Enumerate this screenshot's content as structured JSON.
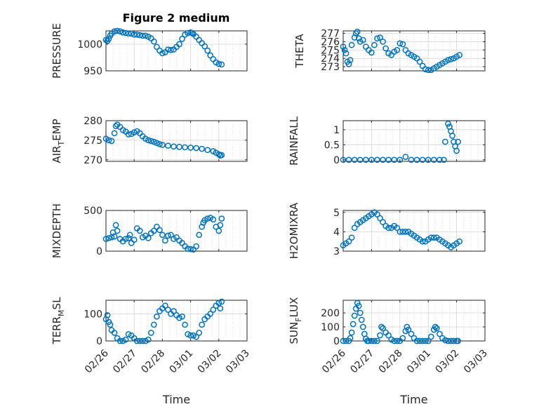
{
  "title": "Figure 2 medium",
  "colors": {
    "marker": "#0072bd",
    "axis": "#262626",
    "grid": "#dcdcdc",
    "background": "#ffffff"
  },
  "x_axis_label": "Time",
  "date_ticks": [
    "02/26",
    "02/27",
    "02/28",
    "03/01",
    "03/02",
    "03/03"
  ],
  "chart_data": [
    {
      "type": "scatter",
      "id": "pressure",
      "ylabel": "PRESSURE",
      "xlim": [
        0,
        5
      ],
      "ylim": [
        950,
        1025
      ],
      "yticks": [
        950,
        1000
      ],
      "ytick_labels": [
        "950",
        "1000"
      ],
      "x": [
        0.0,
        0.05,
        0.1,
        0.15,
        0.2,
        0.3,
        0.4,
        0.5,
        0.6,
        0.7,
        0.8,
        0.9,
        1.0,
        1.1,
        1.2,
        1.3,
        1.4,
        1.5,
        1.6,
        1.7,
        1.8,
        1.9,
        2.0,
        2.1,
        2.2,
        2.3,
        2.4,
        2.5,
        2.6,
        2.7,
        2.8,
        2.9,
        3.0,
        3.05,
        3.1,
        3.2,
        3.3,
        3.4,
        3.5,
        3.6,
        3.7,
        3.8,
        3.9,
        4.0,
        4.1
      ],
      "y": [
        1008,
        1006,
        1010,
        1016,
        1020,
        1024,
        1025,
        1024,
        1022,
        1021,
        1020,
        1020,
        1018,
        1018,
        1017,
        1016,
        1016,
        1014,
        1011,
        1005,
        995,
        988,
        983,
        985,
        990,
        989,
        990,
        995,
        1000,
        1010,
        1018,
        1021,
        1022,
        1021,
        1019,
        1014,
        1008,
        1002,
        996,
        988,
        979,
        972,
        966,
        963,
        962
      ]
    },
    {
      "type": "scatter",
      "id": "theta",
      "ylabel": "THETA",
      "xlim": [
        0,
        5
      ],
      "ylim": [
        272.5,
        277.3
      ],
      "yticks": [
        273,
        274,
        275,
        276,
        277
      ],
      "ytick_labels": [
        "273",
        "274",
        "275",
        "276",
        "277"
      ],
      "x": [
        0.0,
        0.05,
        0.1,
        0.15,
        0.2,
        0.25,
        0.3,
        0.4,
        0.45,
        0.5,
        0.55,
        0.6,
        0.7,
        0.8,
        0.9,
        1.0,
        1.1,
        1.2,
        1.3,
        1.4,
        1.5,
        1.6,
        1.7,
        1.8,
        1.9,
        2.0,
        2.1,
        2.2,
        2.3,
        2.4,
        2.5,
        2.6,
        2.7,
        2.8,
        2.9,
        3.0,
        3.1,
        3.2,
        3.3,
        3.4,
        3.5,
        3.6,
        3.7,
        3.8,
        3.9,
        4.0,
        4.1
      ],
      "y": [
        275.4,
        275.0,
        274.6,
        273.6,
        273.3,
        273.8,
        275.6,
        276.5,
        277.0,
        277.2,
        276.4,
        276.0,
        276.2,
        275.4,
        275.0,
        274.7,
        275.6,
        276.4,
        276.5,
        276.0,
        275.2,
        274.6,
        274.4,
        274.8,
        275.0,
        275.8,
        275.7,
        275.0,
        274.6,
        274.4,
        274.2,
        274.0,
        273.6,
        273.1,
        272.7,
        272.6,
        272.6,
        272.8,
        273.0,
        273.2,
        273.4,
        273.6,
        273.8,
        273.9,
        274.0,
        274.2,
        274.4
      ]
    },
    {
      "type": "scatter",
      "id": "air_temp",
      "ylabel": "AIR",
      "ylabel_sub": "T",
      "ylabel_suffix": "EMP",
      "xlim": [
        0,
        5
      ],
      "ylim": [
        269.6,
        280.0
      ],
      "yticks": [
        270,
        275,
        280
      ],
      "ytick_labels": [
        "270",
        "275",
        "280"
      ],
      "x": [
        0.0,
        0.1,
        0.2,
        0.3,
        0.35,
        0.4,
        0.5,
        0.6,
        0.7,
        0.8,
        0.9,
        1.0,
        1.1,
        1.2,
        1.3,
        1.4,
        1.5,
        1.6,
        1.7,
        1.8,
        1.9,
        2.0,
        2.2,
        2.4,
        2.6,
        2.8,
        3.0,
        3.2,
        3.4,
        3.6,
        3.8,
        3.9,
        4.0,
        4.05,
        4.1
      ],
      "y": [
        275.4,
        275.0,
        274.8,
        276.8,
        278.6,
        279.0,
        278.4,
        277.6,
        277.2,
        276.5,
        276.6,
        277.0,
        277.3,
        276.8,
        276.0,
        275.4,
        275.0,
        274.8,
        274.6,
        274.3,
        274.0,
        273.8,
        273.6,
        273.4,
        273.3,
        273.2,
        273.1,
        273.0,
        272.8,
        272.5,
        272.2,
        271.8,
        271.4,
        271.1,
        271.2
      ]
    },
    {
      "type": "scatter",
      "id": "rainfall",
      "ylabel": "RAINFALL",
      "xlim": [
        0,
        5
      ],
      "ylim": [
        -0.05,
        1.3
      ],
      "yticks": [
        0,
        0.5,
        1
      ],
      "ytick_labels": [
        "0",
        "0.5",
        "1"
      ],
      "x": [
        0.0,
        0.2,
        0.4,
        0.6,
        0.8,
        1.0,
        1.2,
        1.4,
        1.6,
        1.8,
        2.0,
        2.2,
        2.4,
        2.6,
        2.8,
        3.0,
        3.2,
        3.4,
        3.55,
        3.6,
        3.7,
        3.75,
        3.8,
        3.85,
        3.9,
        3.95,
        4.0,
        4.05
      ],
      "y": [
        0,
        0,
        0,
        0,
        0,
        0,
        0,
        0,
        0,
        0,
        0,
        0.1,
        0,
        0,
        0,
        0,
        0,
        0,
        0,
        0.6,
        1.2,
        1.1,
        0.95,
        0.8,
        0.6,
        0.45,
        0.3,
        0.6
      ]
    },
    {
      "type": "scatter",
      "id": "mixdepth",
      "ylabel": "MIXDEPTH",
      "xlim": [
        0,
        5
      ],
      "ylim": [
        0,
        500
      ],
      "yticks": [
        0,
        500
      ],
      "ytick_labels": [
        "0",
        "500"
      ],
      "x": [
        0.0,
        0.1,
        0.2,
        0.25,
        0.3,
        0.35,
        0.4,
        0.5,
        0.6,
        0.7,
        0.8,
        0.85,
        0.9,
        1.0,
        1.1,
        1.2,
        1.3,
        1.4,
        1.5,
        1.6,
        1.7,
        1.8,
        1.9,
        2.0,
        2.1,
        2.2,
        2.3,
        2.4,
        2.5,
        2.6,
        2.7,
        2.8,
        2.9,
        3.0,
        3.1,
        3.2,
        3.3,
        3.4,
        3.45,
        3.5,
        3.6,
        3.7,
        3.8,
        3.9,
        4.0,
        4.05,
        4.1
      ],
      "y": [
        150,
        160,
        170,
        230,
        180,
        320,
        250,
        150,
        120,
        150,
        160,
        200,
        100,
        140,
        280,
        250,
        170,
        190,
        160,
        220,
        250,
        300,
        260,
        200,
        130,
        190,
        200,
        150,
        170,
        130,
        100,
        60,
        30,
        25,
        20,
        60,
        200,
        300,
        350,
        380,
        400,
        410,
        390,
        300,
        250,
        320,
        400
      ]
    },
    {
      "type": "scatter",
      "id": "h2omixra",
      "ylabel": "H2OMIXRA",
      "xlim": [
        0,
        5
      ],
      "ylim": [
        3.0,
        5.1
      ],
      "yticks": [
        3,
        4,
        5
      ],
      "ytick_labels": [
        "3",
        "4",
        "5"
      ],
      "x": [
        0.0,
        0.1,
        0.2,
        0.3,
        0.4,
        0.5,
        0.6,
        0.7,
        0.8,
        0.9,
        1.0,
        1.1,
        1.2,
        1.3,
        1.4,
        1.5,
        1.6,
        1.7,
        1.8,
        1.9,
        2.0,
        2.1,
        2.2,
        2.3,
        2.4,
        2.5,
        2.6,
        2.7,
        2.8,
        2.9,
        3.0,
        3.1,
        3.2,
        3.3,
        3.4,
        3.5,
        3.6,
        3.7,
        3.8,
        3.9,
        4.0,
        4.1
      ],
      "y": [
        3.3,
        3.4,
        3.5,
        3.7,
        4.2,
        4.4,
        4.5,
        4.6,
        4.7,
        4.8,
        4.9,
        5.0,
        4.9,
        4.7,
        4.5,
        4.3,
        4.2,
        4.2,
        4.3,
        4.2,
        4.0,
        4.0,
        4.0,
        4.0,
        3.9,
        3.8,
        3.7,
        3.6,
        3.5,
        3.5,
        3.6,
        3.7,
        3.7,
        3.7,
        3.6,
        3.5,
        3.4,
        3.3,
        3.2,
        3.3,
        3.4,
        3.5
      ]
    },
    {
      "type": "scatter",
      "id": "terr_msl",
      "ylabel": "TERR",
      "ylabel_sub": "M",
      "ylabel_suffix": "SL",
      "xlim": [
        0,
        5
      ],
      "ylim": [
        0,
        150
      ],
      "yticks": [
        0,
        100
      ],
      "ytick_labels": [
        "0",
        "100"
      ],
      "x": [
        0.0,
        0.05,
        0.1,
        0.15,
        0.2,
        0.3,
        0.4,
        0.5,
        0.6,
        0.7,
        0.8,
        0.9,
        1.0,
        1.1,
        1.2,
        1.3,
        1.4,
        1.5,
        1.6,
        1.7,
        1.8,
        1.9,
        2.0,
        2.1,
        2.2,
        2.3,
        2.4,
        2.5,
        2.6,
        2.7,
        2.8,
        2.9,
        3.0,
        3.1,
        3.2,
        3.3,
        3.4,
        3.5,
        3.6,
        3.7,
        3.8,
        3.9,
        4.0,
        4.05,
        4.1
      ],
      "y": [
        80,
        95,
        70,
        60,
        40,
        30,
        10,
        0,
        0,
        5,
        25,
        20,
        10,
        0,
        0,
        0,
        0,
        5,
        30,
        60,
        90,
        110,
        120,
        130,
        115,
        100,
        110,
        95,
        85,
        90,
        60,
        25,
        20,
        20,
        15,
        30,
        60,
        80,
        90,
        100,
        115,
        130,
        140,
        120,
        145
      ]
    },
    {
      "type": "scatter",
      "id": "sun_flux",
      "ylabel": "SUN",
      "ylabel_sub": "F",
      "ylabel_suffix": "LUX",
      "xlim": [
        0,
        5
      ],
      "ylim": [
        0,
        290
      ],
      "yticks": [
        0,
        100,
        200
      ],
      "ytick_labels": [
        "0",
        "100",
        "200"
      ],
      "x": [
        0.0,
        0.1,
        0.2,
        0.25,
        0.3,
        0.35,
        0.4,
        0.45,
        0.5,
        0.55,
        0.6,
        0.65,
        0.7,
        0.75,
        0.8,
        0.85,
        0.9,
        1.0,
        1.1,
        1.2,
        1.3,
        1.35,
        1.4,
        1.5,
        1.6,
        1.7,
        1.8,
        1.9,
        2.0,
        2.1,
        2.2,
        2.25,
        2.3,
        2.4,
        2.5,
        2.6,
        2.7,
        2.8,
        2.9,
        3.0,
        3.1,
        3.2,
        3.25,
        3.3,
        3.4,
        3.5,
        3.6,
        3.7,
        3.8,
        3.9,
        4.0,
        4.05
      ],
      "y": [
        0,
        0,
        0,
        20,
        60,
        120,
        180,
        230,
        270,
        250,
        200,
        150,
        100,
        50,
        15,
        0,
        0,
        0,
        0,
        0,
        40,
        100,
        90,
        60,
        40,
        10,
        0,
        0,
        0,
        20,
        70,
        100,
        80,
        50,
        20,
        0,
        0,
        0,
        0,
        0,
        30,
        80,
        100,
        90,
        50,
        20,
        5,
        0,
        0,
        0,
        0,
        0
      ]
    }
  ]
}
